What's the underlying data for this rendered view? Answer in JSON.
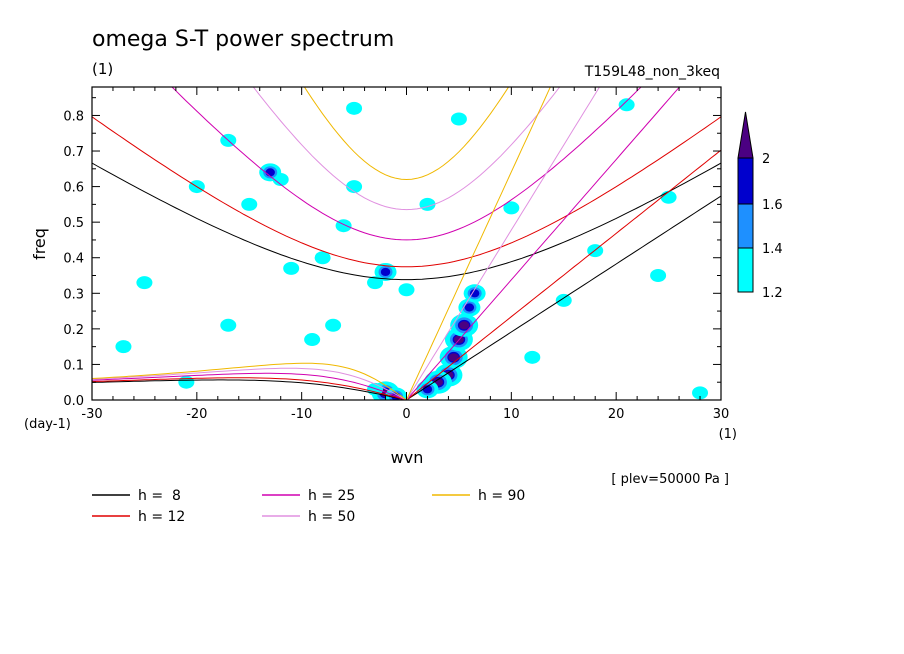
{
  "chart_data": {
    "type": "heatmap",
    "title": "omega S-T power spectrum",
    "subtitle_left": "(1)",
    "subtitle_right": "T159L48_non_3keq",
    "xlabel": "wvn",
    "x_unit": "(1)",
    "ylabel": "freq",
    "y_unit": "(day-1)",
    "xlim": [
      -30,
      30
    ],
    "ylim": [
      0,
      0.88
    ],
    "xticks": [
      "-30",
      "-20",
      "-10",
      "0",
      "10",
      "20",
      "30"
    ],
    "yticks": [
      "0.0",
      "0.1",
      "0.2",
      "0.3",
      "0.4",
      "0.5",
      "0.6",
      "0.7",
      "0.8"
    ],
    "grid": false,
    "note": "[ plev=50000 Pa ]",
    "colorbar": {
      "levels": [
        1.2,
        1.4,
        1.6,
        2
      ],
      "labels": [
        "1.2",
        "1.4",
        "1.6",
        "2"
      ],
      "colors": [
        "#00ffff",
        "#1e90ff",
        "#0000cd",
        "#4b0082"
      ]
    },
    "dispersion_curves": [
      {
        "label": "h =  8",
        "h": 8,
        "color": "#000000"
      },
      {
        "label": "h = 12",
        "h": 12,
        "color": "#e00000"
      },
      {
        "label": "h = 25",
        "h": 25,
        "color": "#d000b0"
      },
      {
        "label": "h = 50",
        "h": 50,
        "color": "#e090e0"
      },
      {
        "label": "h = 90",
        "h": 90,
        "color": "#f0b800"
      }
    ],
    "blobs": [
      {
        "x": 4.5,
        "y": 0.12,
        "level": 3
      },
      {
        "x": 5.0,
        "y": 0.17,
        "level": 3
      },
      {
        "x": 5.5,
        "y": 0.21,
        "level": 3
      },
      {
        "x": 4.0,
        "y": 0.07,
        "level": 3
      },
      {
        "x": 3.0,
        "y": 0.05,
        "level": 3
      },
      {
        "x": 6.0,
        "y": 0.26,
        "level": 2
      },
      {
        "x": 6.5,
        "y": 0.3,
        "level": 2
      },
      {
        "x": 2.0,
        "y": 0.03,
        "level": 2
      },
      {
        "x": -2.0,
        "y": 0.02,
        "level": 3
      },
      {
        "x": -1.0,
        "y": 0.01,
        "level": 2
      },
      {
        "x": -3.0,
        "y": 0.03,
        "level": 1
      },
      {
        "x": -2.0,
        "y": 0.36,
        "level": 2
      },
      {
        "x": -3.0,
        "y": 0.33,
        "level": 1
      },
      {
        "x": 0.0,
        "y": 0.31,
        "level": 1
      },
      {
        "x": -8.0,
        "y": 0.4,
        "level": 1
      },
      {
        "x": -11.0,
        "y": 0.37,
        "level": 1
      },
      {
        "x": -12.0,
        "y": 0.62,
        "level": 1
      },
      {
        "x": -13.0,
        "y": 0.64,
        "level": 2
      },
      {
        "x": -6.0,
        "y": 0.49,
        "level": 1
      },
      {
        "x": -17.0,
        "y": 0.73,
        "level": 1
      },
      {
        "x": -15.0,
        "y": 0.55,
        "level": 1
      },
      {
        "x": -7.0,
        "y": 0.21,
        "level": 1
      },
      {
        "x": -20.0,
        "y": 0.6,
        "level": 1
      },
      {
        "x": -5.0,
        "y": 0.82,
        "level": 1
      },
      {
        "x": 5.0,
        "y": 0.79,
        "level": 1
      },
      {
        "x": 21.0,
        "y": 0.83,
        "level": 1
      },
      {
        "x": 10.0,
        "y": 0.54,
        "level": 1
      },
      {
        "x": 18.0,
        "y": 0.42,
        "level": 1
      },
      {
        "x": 28.0,
        "y": 0.02,
        "level": 1
      },
      {
        "x": -17.0,
        "y": 0.21,
        "level": 1
      },
      {
        "x": -25.0,
        "y": 0.33,
        "level": 1
      },
      {
        "x": -27.0,
        "y": 0.15,
        "level": 1
      },
      {
        "x": 15.0,
        "y": 0.28,
        "level": 1
      },
      {
        "x": 25.0,
        "y": 0.57,
        "level": 1
      },
      {
        "x": -21.0,
        "y": 0.05,
        "level": 1
      },
      {
        "x": 2.0,
        "y": 0.55,
        "level": 1
      },
      {
        "x": -9.0,
        "y": 0.17,
        "level": 1
      },
      {
        "x": 24.0,
        "y": 0.35,
        "level": 1
      },
      {
        "x": -5.0,
        "y": 0.6,
        "level": 1
      },
      {
        "x": 12.0,
        "y": 0.12,
        "level": 1
      }
    ]
  }
}
